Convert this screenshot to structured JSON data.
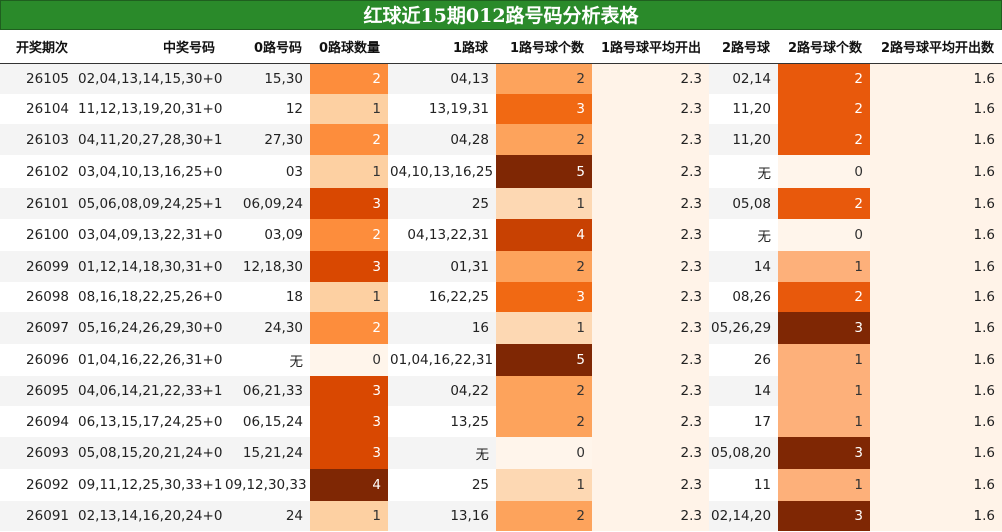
{
  "title": "红球近15期012路号码分析表格",
  "headers": [
    "开奖期次",
    "中奖号码",
    "0路号码",
    "0路球数量",
    "1路球",
    "1路号球个数",
    "1路号球平均开出",
    "2路号球",
    "2路号球个数",
    "2路号球平均开出数"
  ],
  "rows": [
    {
      "period": "26105",
      "numbers": "02,04,13,14,15,30+08",
      "r0": "15,30",
      "c0": 2,
      "r1": "04,13",
      "c1": 2,
      "avg1": "2.3",
      "r2": "02,14",
      "c2": 2,
      "avg2": "1.6"
    },
    {
      "period": "26104",
      "numbers": "11,12,13,19,20,31+03",
      "r0": "12",
      "c0": 1,
      "r1": "13,19,31",
      "c1": 3,
      "avg1": "2.3",
      "r2": "11,20",
      "c2": 2,
      "avg2": "1.6"
    },
    {
      "period": "26103",
      "numbers": "04,11,20,27,28,30+15",
      "r0": "27,30",
      "c0": 2,
      "r1": "04,28",
      "c1": 2,
      "avg1": "2.3",
      "r2": "11,20",
      "c2": 2,
      "avg2": "1.6"
    },
    {
      "period": "26102",
      "numbers": "03,04,10,13,16,25+09",
      "r0": "03",
      "c0": 1,
      "r1": "04,10,13,16,25",
      "c1": 5,
      "avg1": "2.3",
      "r2": "无",
      "c2": 0,
      "avg2": "1.6"
    },
    {
      "period": "26101",
      "numbers": "05,06,08,09,24,25+12",
      "r0": "06,09,24",
      "c0": 3,
      "r1": "25",
      "c1": 1,
      "avg1": "2.3",
      "r2": "05,08",
      "c2": 2,
      "avg2": "1.6"
    },
    {
      "period": "26100",
      "numbers": "03,04,09,13,22,31+04",
      "r0": "03,09",
      "c0": 2,
      "r1": "04,13,22,31",
      "c1": 4,
      "avg1": "2.3",
      "r2": "无",
      "c2": 0,
      "avg2": "1.6"
    },
    {
      "period": "26099",
      "numbers": "01,12,14,18,30,31+02",
      "r0": "12,18,30",
      "c0": 3,
      "r1": "01,31",
      "c1": 2,
      "avg1": "2.3",
      "r2": "14",
      "c2": 1,
      "avg2": "1.6"
    },
    {
      "period": "26098",
      "numbers": "08,16,18,22,25,26+07",
      "r0": "18",
      "c0": 1,
      "r1": "16,22,25",
      "c1": 3,
      "avg1": "2.3",
      "r2": "08,26",
      "c2": 2,
      "avg2": "1.6"
    },
    {
      "period": "26097",
      "numbers": "05,16,24,26,29,30+02",
      "r0": "24,30",
      "c0": 2,
      "r1": "16",
      "c1": 1,
      "avg1": "2.3",
      "r2": "05,26,29",
      "c2": 3,
      "avg2": "1.6"
    },
    {
      "period": "26096",
      "numbers": "01,04,16,22,26,31+04",
      "r0": "无",
      "c0": 0,
      "r1": "01,04,16,22,31",
      "c1": 5,
      "avg1": "2.3",
      "r2": "26",
      "c2": 1,
      "avg2": "1.6"
    },
    {
      "period": "26095",
      "numbers": "04,06,14,21,22,33+16",
      "r0": "06,21,33",
      "c0": 3,
      "r1": "04,22",
      "c1": 2,
      "avg1": "2.3",
      "r2": "14",
      "c2": 1,
      "avg2": "1.6"
    },
    {
      "period": "26094",
      "numbers": "06,13,15,17,24,25+01",
      "r0": "06,15,24",
      "c0": 3,
      "r1": "13,25",
      "c1": 2,
      "avg1": "2.3",
      "r2": "17",
      "c2": 1,
      "avg2": "1.6"
    },
    {
      "period": "26093",
      "numbers": "05,08,15,20,21,24+09",
      "r0": "15,21,24",
      "c0": 3,
      "r1": "无",
      "c1": 0,
      "avg1": "2.3",
      "r2": "05,08,20",
      "c2": 3,
      "avg2": "1.6"
    },
    {
      "period": "26092",
      "numbers": "09,11,12,25,30,33+11",
      "r0": "09,12,30,33",
      "c0": 4,
      "r1": "25",
      "c1": 1,
      "avg1": "2.3",
      "r2": "11",
      "c2": 1,
      "avg2": "1.6"
    },
    {
      "period": "26091",
      "numbers": "02,13,14,16,20,24+05",
      "r0": "24",
      "c0": 1,
      "r1": "13,16",
      "c1": 2,
      "avg1": "2.3",
      "r2": "02,14,20",
      "c2": 3,
      "avg2": "1.6"
    }
  ],
  "heat_colors": {
    "c0": {
      "0": "#fff5eb",
      "1": "#fdd0a2",
      "2": "#fd8d3c",
      "3": "#d94801",
      "4": "#7f2704"
    },
    "c1": {
      "0": "#fff5eb",
      "1": "#fdd8b3",
      "2": "#fda35c",
      "3": "#f16913",
      "4": "#c84102",
      "5": "#7f2704"
    },
    "c2": {
      "0": "#fff5eb",
      "1": "#fdb07a",
      "2": "#e8590c",
      "3": "#7f2704"
    }
  }
}
